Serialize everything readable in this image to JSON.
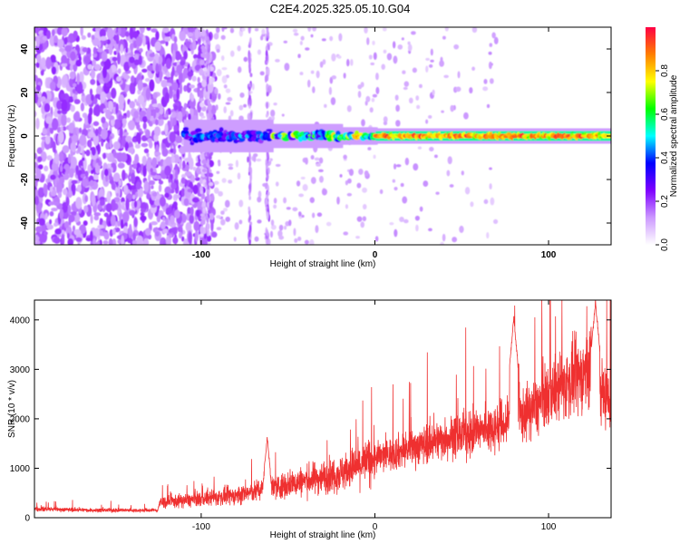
{
  "title": "C2E4.2025.325.05.10.G04",
  "chart_data": [
    {
      "type": "heatmap",
      "xlabel": "Height of straight line (km)",
      "ylabel": "Frequency (Hz)",
      "xlim": [
        -196,
        136
      ],
      "ylim": [
        -50,
        50
      ],
      "xticks": [
        -100,
        0,
        100
      ],
      "yticks": [
        -40,
        -20,
        0,
        20,
        40
      ],
      "colorbar": {
        "label": "Normalized spectral amplitude",
        "range": [
          0,
          1
        ],
        "ticks": [
          "0.0",
          "0.2",
          "0.4",
          "0.6",
          "0.8"
        ],
        "colors": [
          "#ffffff",
          "#cc99ff",
          "#7f00ff",
          "#0000ff",
          "#00ffff",
          "#00ff00",
          "#ffff00",
          "#ff7f00",
          "#ff0044"
        ]
      },
      "features": {
        "noise_region_x": [
          -196,
          -100
        ],
        "central_band_start_x": -110,
        "central_band_frequency_hz": 0
      }
    },
    {
      "type": "line",
      "xlabel": "Height of straight line (km)",
      "ylabel": "SNR (10 * v/v)",
      "xlim": [
        -196,
        136
      ],
      "ylim": [
        0,
        4400
      ],
      "xticks": [
        -100,
        0,
        100
      ],
      "yticks": [
        0,
        1000,
        2000,
        3000,
        4000
      ],
      "line_color": "#ef3030",
      "trend": {
        "x": [
          -196,
          -160,
          -125,
          -124,
          -100,
          -80,
          -60,
          -40,
          -20,
          0,
          20,
          40,
          60,
          80,
          95,
          100,
          110,
          120,
          126,
          130,
          136
        ],
        "y": [
          180,
          150,
          150,
          300,
          380,
          450,
          600,
          750,
          900,
          1200,
          1400,
          1600,
          1750,
          1950,
          2300,
          2500,
          2700,
          2900,
          3300,
          2600,
          2300
        ]
      },
      "peaks": [
        {
          "x": 80,
          "y": 4050
        },
        {
          "x": 127,
          "y": 4380
        },
        {
          "x": -62,
          "y": 1650
        }
      ]
    }
  ]
}
